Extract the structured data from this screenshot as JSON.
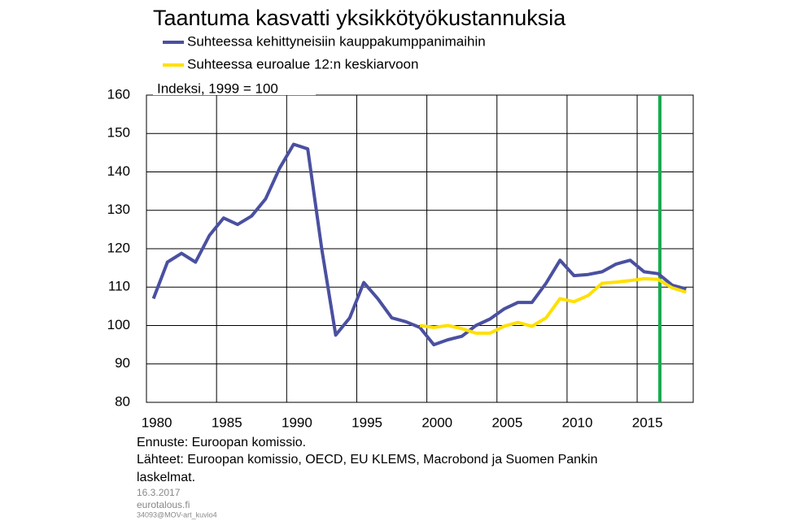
{
  "chart_data": {
    "type": "line",
    "title": "Taantuma kasvatti yksikkötyökustannuksia",
    "annotation": "Indeksi, 1999 = 100",
    "categories": [
      "1980",
      null,
      null,
      null,
      null,
      "1985",
      null,
      null,
      null,
      null,
      "1990",
      null,
      null,
      null,
      null,
      "1995",
      null,
      null,
      null,
      null,
      "2000",
      null,
      null,
      null,
      null,
      "2005",
      null,
      null,
      null,
      null,
      "2010",
      null,
      null,
      null,
      null,
      "2015",
      null,
      null,
      null
    ],
    "series": [
      {
        "name": "Suhteessa kehittyneisiin kauppakumppanimaihin",
        "color": "#4a50a0",
        "values": [
          107,
          116.5,
          118.8,
          116.5,
          123.5,
          128,
          126.3,
          128.5,
          133,
          141,
          147.2,
          146,
          120,
          97.5,
          102,
          111.2,
          107,
          102,
          101,
          99.5,
          95,
          96.3,
          97.2,
          100,
          101.7,
          104.3,
          106,
          106,
          111,
          117,
          113,
          113.3,
          114,
          116,
          117,
          114,
          113.5,
          110.5,
          109.5
        ]
      },
      {
        "name": "Suhteessa euroalue 12:n keskiarvoon",
        "color": "#ffe000",
        "values": [
          null,
          null,
          null,
          null,
          null,
          null,
          null,
          null,
          null,
          null,
          null,
          null,
          null,
          null,
          null,
          null,
          null,
          null,
          null,
          100,
          99.5,
          100,
          99.2,
          98,
          98,
          99.8,
          100.8,
          99.8,
          102,
          107,
          106.2,
          107.8,
          111,
          111.3,
          111.7,
          112.2,
          112,
          109.8,
          108.7
        ]
      }
    ],
    "ylim": [
      80,
      160
    ],
    "yticks": [
      80,
      90,
      100,
      110,
      120,
      130,
      140,
      150,
      160
    ],
    "grid": true,
    "notes": [
      "Ennuste: Euroopan komissio.",
      "Lähteet: Euroopan komissio, OECD, EU KLEMS, Macrobond ja Suomen Pankin",
      "laskelmat."
    ],
    "footer": [
      "16.3.2017",
      "eurotalous.fi",
      "34093@MOV-art_kuvio4"
    ]
  }
}
